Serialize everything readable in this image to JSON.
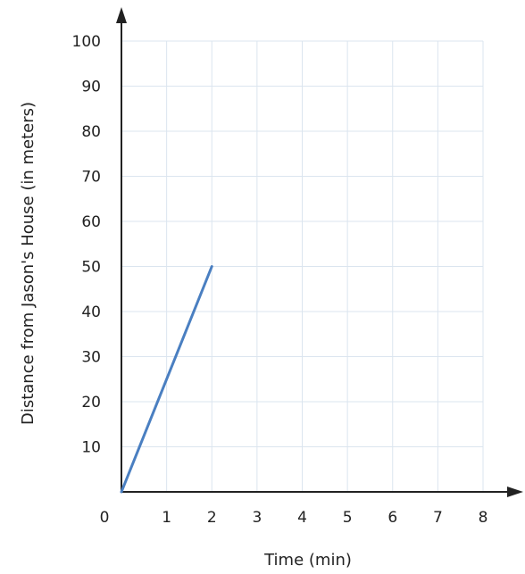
{
  "chart_data": {
    "type": "line",
    "title": "",
    "xlabel": "Time (min)",
    "ylabel": "Distance from Jason's House (in meters)",
    "xlim": [
      0,
      8
    ],
    "ylim": [
      0,
      100
    ],
    "x_ticks": [
      1,
      2,
      3,
      4,
      5,
      6,
      7,
      8
    ],
    "y_ticks": [
      10,
      20,
      30,
      40,
      50,
      60,
      70,
      80,
      90,
      100
    ],
    "origin_label": "0",
    "grid": true,
    "legend": "none",
    "series": [
      {
        "x": [
          0,
          2
        ],
        "y": [
          0,
          50
        ],
        "color": "#4a7fc1"
      }
    ],
    "colors": {
      "grid": "#dbe5ef",
      "axis": "#222222"
    }
  }
}
